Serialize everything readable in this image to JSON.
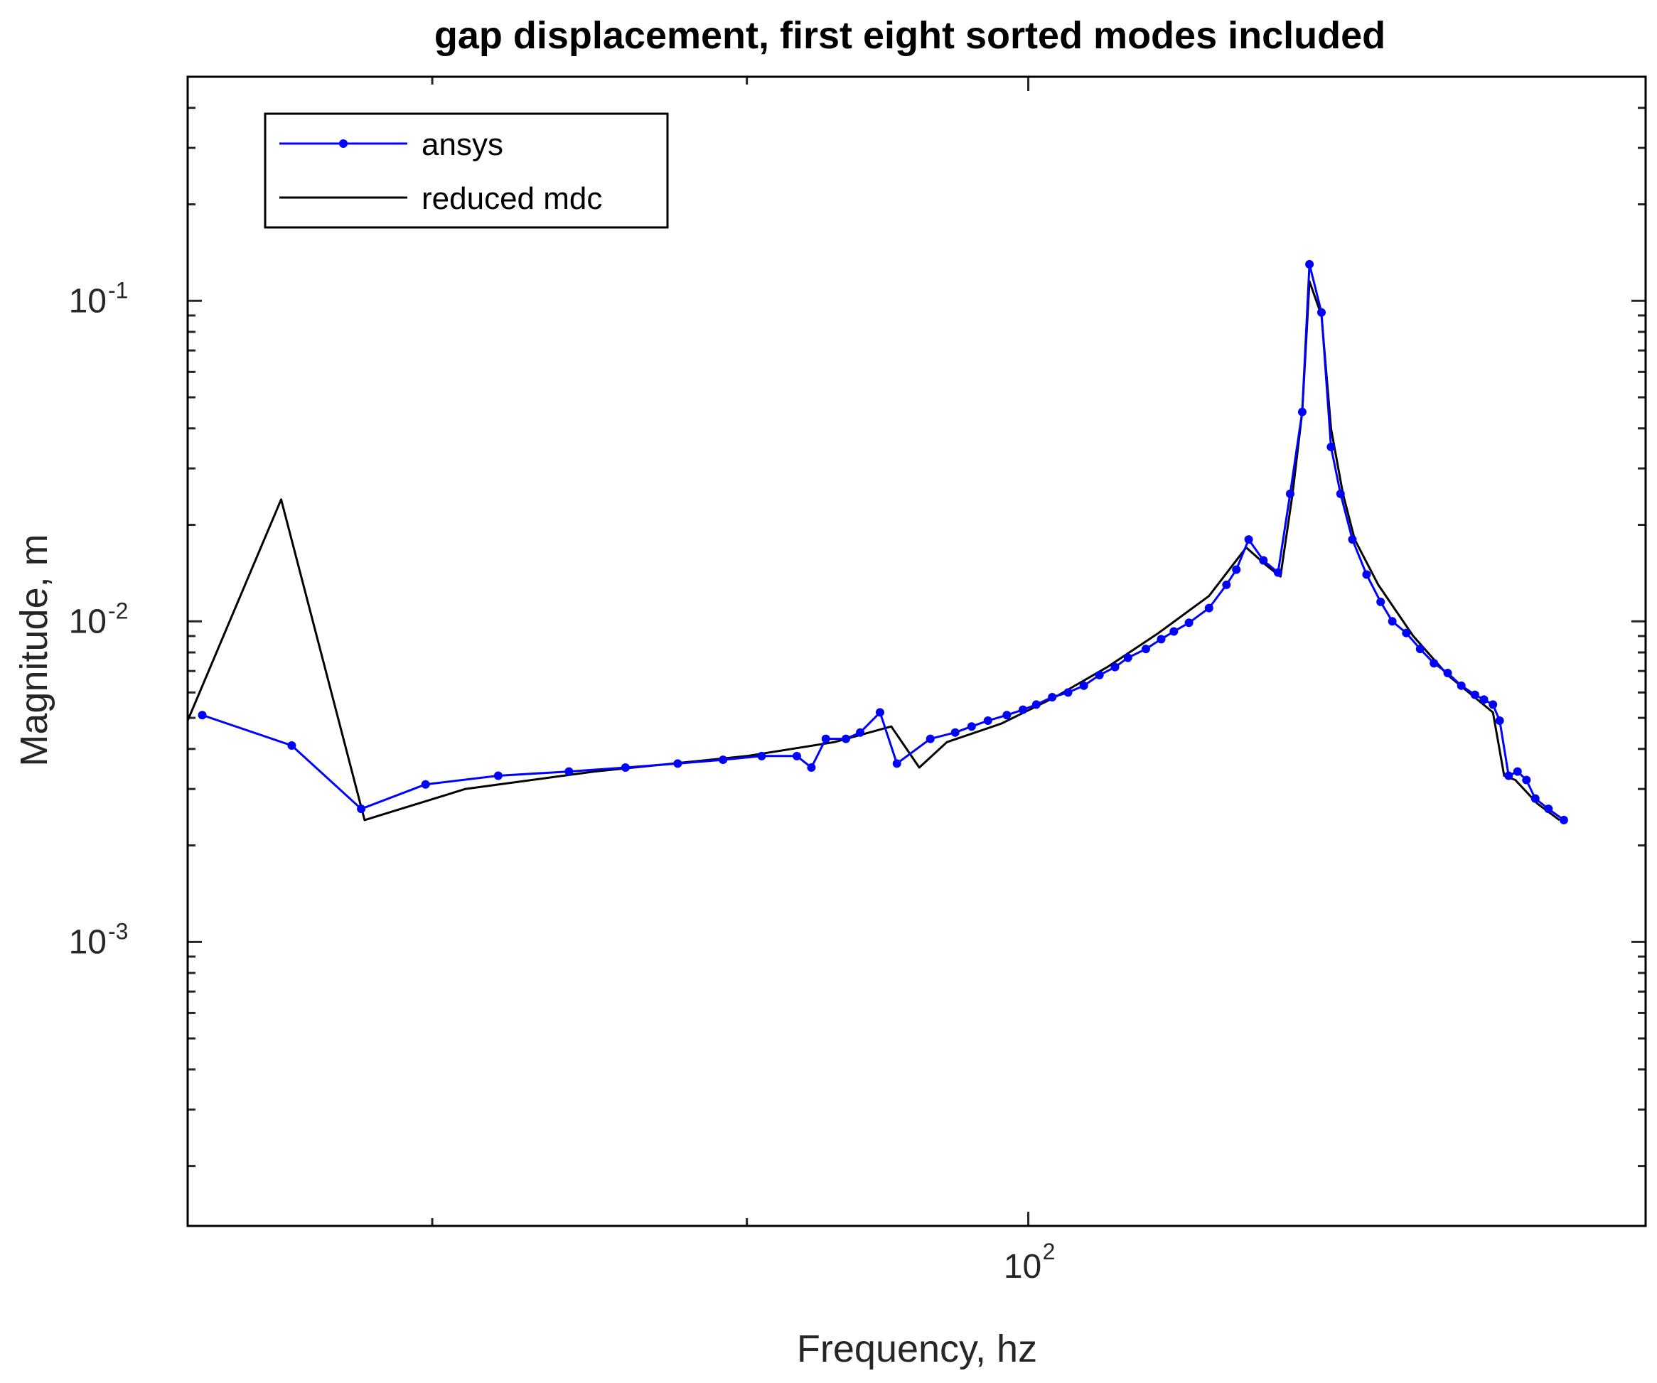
{
  "chart_data": {
    "type": "line",
    "title": "gap displacement, first eight sorted modes included",
    "xlabel": "Frequency, hz",
    "ylabel": "Magnitude, m",
    "xscale": "log",
    "yscale": "log",
    "xlim": [
      73,
      126
    ],
    "ylim": [
      0.00013,
      0.5
    ],
    "x_ticks": [
      {
        "base": "10",
        "exp": "2",
        "value": 100
      }
    ],
    "y_ticks": [
      {
        "base": "10",
        "exp": "-1",
        "value": 0.1
      },
      {
        "base": "10",
        "exp": "-2",
        "value": 0.01
      },
      {
        "base": "10",
        "exp": "-3",
        "value": 0.001
      }
    ],
    "grid": false,
    "legend_position": "top-left",
    "series": [
      {
        "name": "ansys",
        "color": "#0000ff",
        "marker": "dot",
        "x": [
          73.4,
          75.9,
          77.9,
          79.8,
          82.0,
          84.2,
          86.0,
          87.7,
          89.2,
          90.5,
          91.7,
          92.2,
          92.7,
          93.4,
          93.9,
          94.6,
          95.2,
          96.4,
          97.3,
          97.9,
          98.5,
          99.2,
          99.8,
          100.3,
          100.9,
          101.5,
          102.1,
          102.7,
          103.3,
          103.8,
          104.5,
          105.1,
          105.6,
          106.2,
          107.0,
          107.7,
          108.1,
          108.6,
          109.2,
          109.8,
          110.3,
          110.8,
          111.1,
          111.6,
          112.0,
          112.4,
          112.9,
          113.5,
          114.1,
          114.6,
          115.2,
          115.8,
          116.4,
          117.0,
          117.6,
          118.2,
          118.6,
          119.0,
          119.3,
          119.7,
          120.1,
          120.5,
          120.9,
          121.5,
          122.2
        ],
        "y": [
          0.0051,
          0.0041,
          0.0026,
          0.0031,
          0.0033,
          0.0034,
          0.0035,
          0.0036,
          0.0037,
          0.0038,
          0.0038,
          0.0035,
          0.0043,
          0.0043,
          0.0045,
          0.0052,
          0.0036,
          0.0043,
          0.0045,
          0.0047,
          0.0049,
          0.0051,
          0.0053,
          0.0055,
          0.0058,
          0.006,
          0.0063,
          0.0068,
          0.0072,
          0.0077,
          0.0082,
          0.0088,
          0.0093,
          0.0099,
          0.011,
          0.013,
          0.0145,
          0.018,
          0.0155,
          0.0142,
          0.025,
          0.045,
          0.13,
          0.092,
          0.035,
          0.025,
          0.018,
          0.014,
          0.0115,
          0.01,
          0.0092,
          0.0082,
          0.0074,
          0.0069,
          0.0063,
          0.0059,
          0.0057,
          0.0055,
          0.0049,
          0.0033,
          0.0034,
          0.0032,
          0.0028,
          0.0026,
          0.0024
        ]
      },
      {
        "name": "reduced mdc",
        "color": "#000000",
        "x": [
          73.0,
          75.6,
          78.0,
          81.0,
          85.0,
          90.0,
          93.0,
          95.0,
          96.0,
          97.0,
          99.0,
          101.0,
          103.0,
          105.0,
          107.0,
          108.5,
          109.3,
          109.9,
          110.4,
          110.8,
          111.1,
          111.6,
          112.0,
          112.5,
          113.0,
          114.0,
          115.5,
          117.0,
          119.0,
          119.5,
          120.0,
          121.0,
          122.0
        ],
        "y": [
          0.0049,
          0.024,
          0.0024,
          0.003,
          0.0034,
          0.0038,
          0.0042,
          0.0047,
          0.0035,
          0.0042,
          0.0048,
          0.0058,
          0.0072,
          0.0092,
          0.012,
          0.017,
          0.015,
          0.0138,
          0.025,
          0.045,
          0.115,
          0.09,
          0.04,
          0.025,
          0.018,
          0.013,
          0.009,
          0.0068,
          0.0052,
          0.0033,
          0.0032,
          0.0027,
          0.0024
        ]
      }
    ]
  }
}
